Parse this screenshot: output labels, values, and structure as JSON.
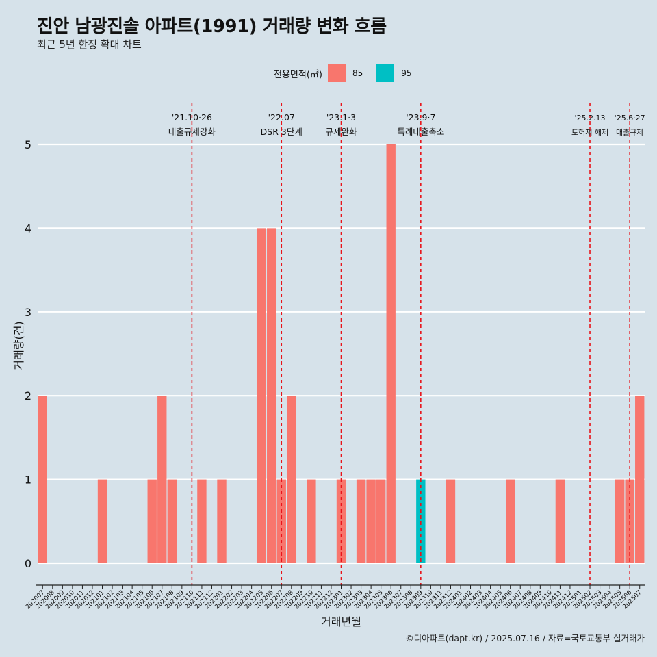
{
  "page": {
    "title": "진안 남광진솔 아파트(1991) 거래량 변화 흐름",
    "subtitle": "최근 5년 한정 확대 차트",
    "caption": "©디아파트(dapt.kr) / 2025.07.16 / 자료=국토교통부 실거래가"
  },
  "legend": {
    "title": "전용면적(㎡)",
    "items": [
      {
        "label": "85",
        "color": "#f8766d"
      },
      {
        "label": "95",
        "color": "#00bfc4"
      }
    ]
  },
  "chart_data": {
    "type": "bar",
    "title": "진안 남광진솔 아파트(1991) 거래량 변화 흐름",
    "subtitle": "최근 5년 한정 확대 차트",
    "xlabel": "거래년월",
    "ylabel": "거래량(건)",
    "ylim": [
      0,
      5
    ],
    "yticks": [
      0,
      1,
      2,
      3,
      4,
      5
    ],
    "grid": true,
    "legend_position": "top",
    "categories": [
      "202007",
      "202008",
      "202009",
      "202010",
      "202011",
      "202012",
      "202101",
      "202102",
      "202103",
      "202104",
      "202105",
      "202106",
      "202107",
      "202108",
      "202109",
      "202110",
      "202111",
      "202112",
      "202201",
      "202202",
      "202203",
      "202204",
      "202205",
      "202206",
      "202207",
      "202208",
      "202209",
      "202210",
      "202211",
      "202212",
      "202301",
      "202302",
      "202303",
      "202304",
      "202305",
      "202306",
      "202307",
      "202308",
      "202309",
      "202310",
      "202311",
      "202312",
      "202401",
      "202402",
      "202403",
      "202404",
      "202405",
      "202406",
      "202407",
      "202408",
      "202409",
      "202410",
      "202411",
      "202412",
      "202501",
      "202502",
      "202503",
      "202504",
      "202505",
      "202506",
      "202507"
    ],
    "series": [
      {
        "name": "85",
        "color": "#f8766d",
        "values": [
          2,
          0,
          0,
          0,
          0,
          0,
          1,
          0,
          0,
          0,
          0,
          1,
          2,
          1,
          0,
          0,
          1,
          0,
          1,
          0,
          0,
          0,
          4,
          4,
          1,
          2,
          0,
          1,
          0,
          0,
          1,
          0,
          1,
          1,
          1,
          5,
          0,
          0,
          0,
          0,
          0,
          1,
          0,
          0,
          0,
          0,
          0,
          1,
          0,
          0,
          0,
          0,
          1,
          0,
          0,
          0,
          0,
          0,
          1,
          1,
          2
        ]
      },
      {
        "name": "95",
        "color": "#00bfc4",
        "values": [
          0,
          0,
          0,
          0,
          0,
          0,
          0,
          0,
          0,
          0,
          0,
          0,
          0,
          0,
          0,
          0,
          0,
          0,
          0,
          0,
          0,
          0,
          0,
          0,
          0,
          0,
          0,
          0,
          0,
          0,
          0,
          0,
          0,
          0,
          0,
          0,
          0,
          0,
          1,
          0,
          0,
          0,
          0,
          0,
          0,
          0,
          0,
          0,
          0,
          0,
          0,
          0,
          0,
          0,
          0,
          0,
          0,
          0,
          0,
          0,
          0
        ]
      }
    ],
    "annotations": [
      {
        "x": "202110",
        "date": "'21.10·26",
        "label": "대출규제강화"
      },
      {
        "x": "202207",
        "date": "'22.07",
        "label": "DSR 3단계"
      },
      {
        "x": "202301",
        "date": "'23.1·3",
        "label": "규제완화"
      },
      {
        "x": "202309",
        "date": "'23.9·7",
        "label": "특례대출축소"
      },
      {
        "x": "202502",
        "date": "'25.2.13",
        "label": "토허제 해제"
      },
      {
        "x": "202506",
        "date": "'25.6·27",
        "label": "대출규제"
      }
    ]
  }
}
